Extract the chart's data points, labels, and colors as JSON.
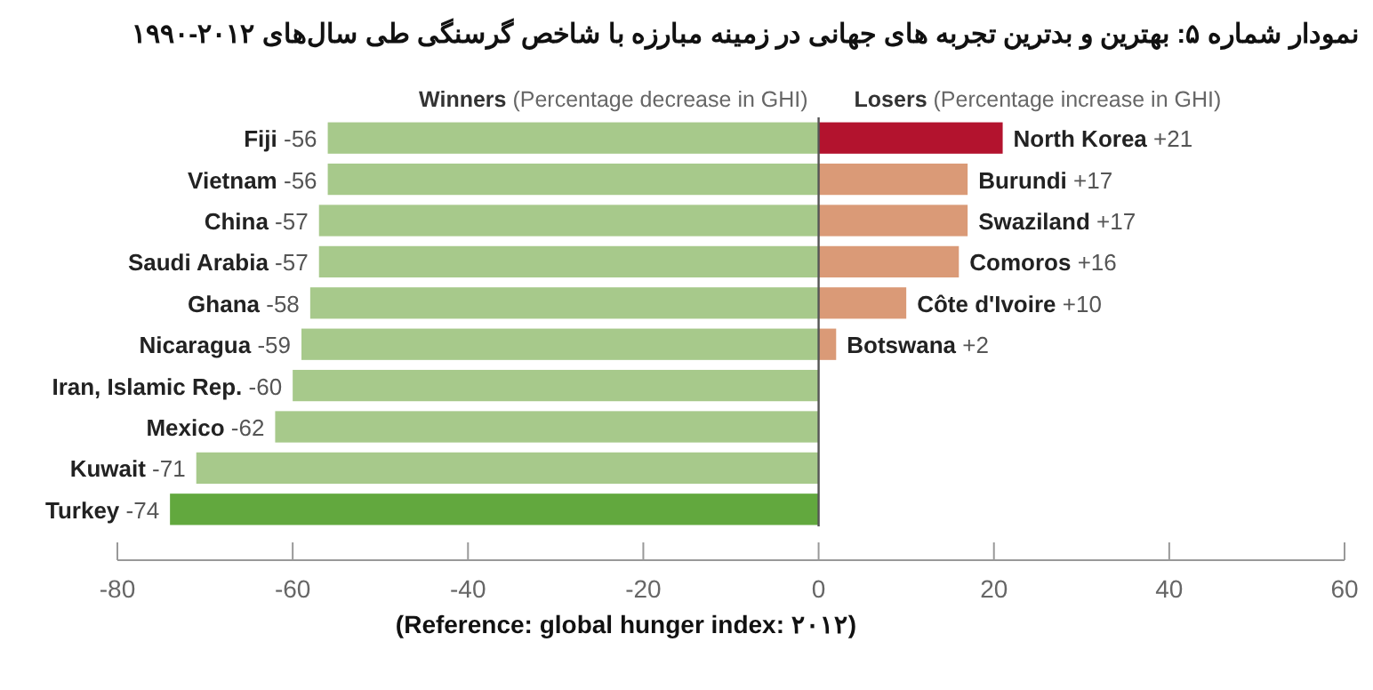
{
  "chart_data": {
    "type": "bar",
    "orientation": "horizontal",
    "stacked": true,
    "tick_labels": "x",
    "title": "نمودار شماره ۵: بهترین و بدترین تجربه های جهانی در زمینه مبارزه با شاخص گرسنگی طی سال‌های ۲۰۱۲-۱۹۹۰",
    "annotations": [
      "(Reference: global hunger index: ۲۰۱۲)"
    ],
    "categories": [
      null,
      null,
      null,
      null,
      null,
      null,
      null,
      null,
      null,
      null
    ],
    "xlim": [
      -80,
      60
    ],
    "xticks": [
      -80,
      -60,
      -40,
      -20,
      0,
      20,
      40,
      60
    ],
    "series": [
      {
        "name": "Winners (Percentage decrease in GHI)",
        "values": [
          -56,
          -56,
          -57,
          -57,
          -58,
          -59,
          -60,
          -62,
          -71,
          -74
        ],
        "colors": [
          "#a7c98b",
          "#a7c98b",
          "#a7c98b",
          "#a7c98b",
          "#a7c98b",
          "#a7c98b",
          "#a7c98b",
          "#a7c98b",
          "#a7c98b",
          "#62a83e"
        ],
        "value_labels": [
          "Fiji -56",
          "Vietnam -56",
          "China -57",
          "Saudi Arabia -57",
          "Ghana -58",
          "Nicaragua -59",
          "Iran, Islamic Rep. -60",
          "Mexico -62",
          "Kuwait -71",
          "Turkey -74"
        ]
      },
      {
        "name": "Losers (Percentage increase in GHI)",
        "values": [
          21,
          17,
          17,
          16,
          10,
          2,
          null,
          null,
          null,
          null
        ],
        "colors": [
          "#b3132e",
          "#da9a77",
          "#da9a77",
          "#da9a77",
          "#da9a77",
          "#da9a77",
          null,
          null,
          null,
          null
        ],
        "value_labels": [
          "North Korea +21",
          "Burundi +17",
          "Swaziland +17",
          "Comoros +16",
          "Côte d'Ivoire +10",
          "Botswana +2",
          null,
          null,
          null,
          null
        ]
      }
    ]
  }
}
